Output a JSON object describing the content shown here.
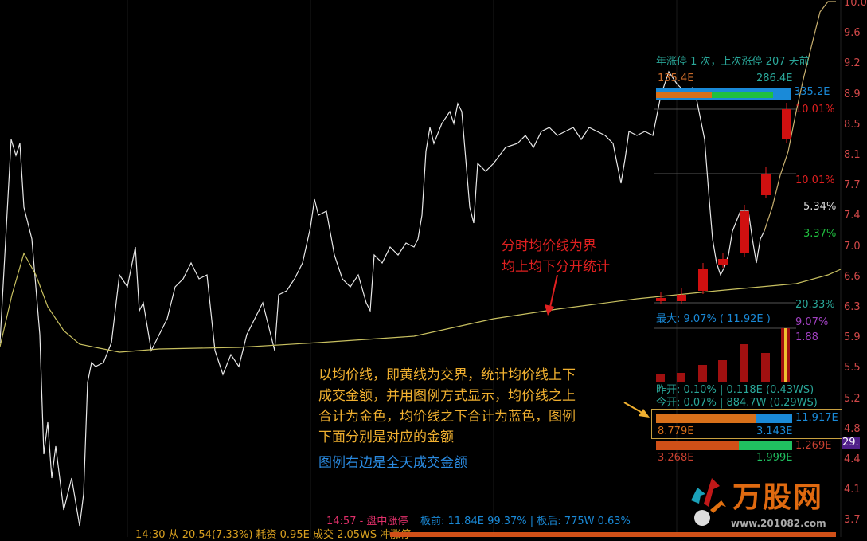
{
  "colors": {
    "up": "#e02020",
    "avg_line": "#c8c060",
    "price_line": "#e8e8e8",
    "above": "#d8701a",
    "below": "#1a8ad8",
    "green": "#20c040",
    "teal": "#2aa89a"
  },
  "axis_labels": [
    "10.0",
    "9.6",
    "9.2",
    "8.9",
    "8.5",
    "8.1",
    "7.7",
    "7.4",
    "7.0",
    "6.6",
    "6.3",
    "5.9",
    "5.5",
    "5.2",
    "4.8",
    "4.4",
    "4.1",
    "3.7"
  ],
  "panel": {
    "limit_info": "年涨停 1 次，上次涨停 207 天前",
    "top_left_amount": "135.4E",
    "top_mid_amount": "286.4E",
    "top_total": "335.2E",
    "pct1": "10.01%",
    "pct2": "10.01%",
    "pct3": "5.34%",
    "pct4": "3.37%",
    "pct5": "20.33%",
    "max_label": "最大: 9.07% ( 11.92E )",
    "max_pct": "9.07%",
    "max_ratio": "1.88",
    "prev_open": "昨开: 0.10% | 0.118E (0.43WS)",
    "today_open": "今开: 0.07% | 884.7W (0.29WS)",
    "legend_total": "11.917E",
    "above_amount": "8.779E",
    "below_amount": "3.143E",
    "current_price_tag": "29.",
    "legend2_total": "1.269E",
    "legend2_left": "3.268E",
    "legend2_right": "1.999E"
  },
  "annotations": {
    "red_note_1": "分时均价线为界",
    "red_note_2": "均上均下分开统计",
    "yellow_note": [
      "以均价线，即黄线为交界，统计均价线上下",
      "成交金额，并用图例方式显示，均价线之上",
      "合计为金色，均价线之下合计为蓝色，图例",
      "下面分别是对应的金额"
    ],
    "blue_note": "图例右边是全天成交金额"
  },
  "status": {
    "time_event": "14:57 - 盘中涨停",
    "before_board": "板前: 11.84E 99.37% | 板后: 775W 0.63%",
    "bottom_line": "14:30 从 20.54(7.33%) 耗资 0.95E 成交 2.05WS 冲涨停"
  },
  "logo": {
    "text": "万股网",
    "url_text": "www.201082.com"
  }
}
